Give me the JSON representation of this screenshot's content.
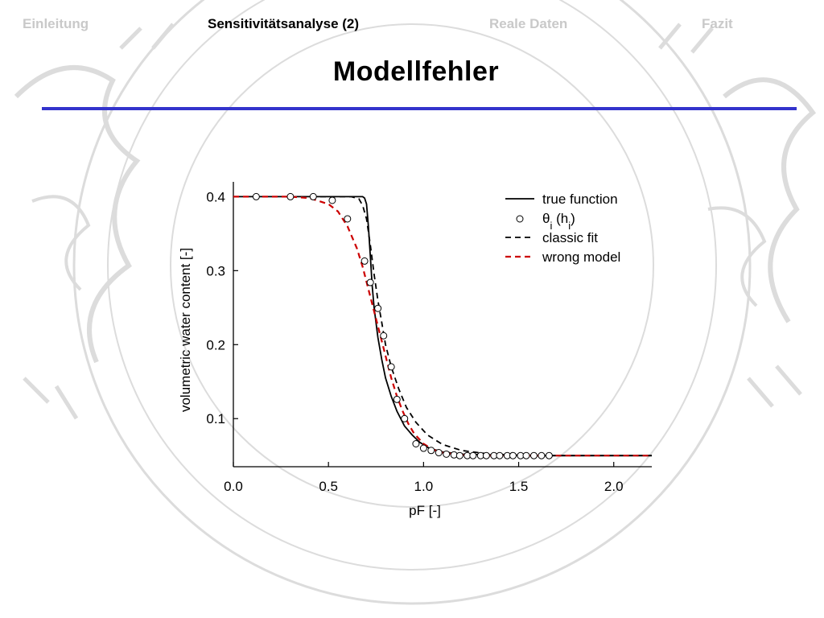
{
  "nav": {
    "items": [
      {
        "label": "Einleitung",
        "active": false
      },
      {
        "label": "Sensitivitätsanalyse (2)",
        "active": true
      },
      {
        "label": "Reale Daten",
        "active": false
      },
      {
        "label": "Fazit",
        "active": false
      }
    ]
  },
  "slide": {
    "title": "Modellfehler",
    "accent_color": "#3333cc",
    "seal_color": "#d8d8d8"
  },
  "chart_data": {
    "type": "line",
    "title": "",
    "xlabel": "pF [-]",
    "ylabel": "volumetric water content [-]",
    "xlim": [
      0.0,
      2.2
    ],
    "ylim": [
      0.035,
      0.42
    ],
    "xticks": [
      0.0,
      0.5,
      1.0,
      1.5,
      2.0
    ],
    "xtick_labels": [
      "0.0",
      "0.5",
      "1.0",
      "1.5",
      "2.0"
    ],
    "yticks": [
      0.1,
      0.2,
      0.3,
      0.4
    ],
    "ytick_labels": [
      "0.1",
      "0.2",
      "0.3",
      "0.4"
    ],
    "grid": false,
    "legend_position": "top-right",
    "legend": [
      {
        "key": "true",
        "label": "true function",
        "style": "solid",
        "color": "#000000"
      },
      {
        "key": "obs",
        "label": "θi (hi)",
        "main": "θ",
        "sub1": "i",
        "mid": " (h",
        "sub2": "i",
        "end": ")",
        "style": "marker",
        "color": "#000000"
      },
      {
        "key": "classic",
        "label": "classic fit",
        "style": "dashed",
        "color": "#000000"
      },
      {
        "key": "wrong",
        "label": "wrong model",
        "style": "dashed",
        "color": "#cc0000"
      }
    ],
    "series": [
      {
        "key": "true",
        "name": "true function",
        "style": "solid",
        "color": "#000000",
        "x": [
          0.0,
          0.66,
          0.68,
          0.69,
          0.7,
          0.71,
          0.72,
          0.73,
          0.74,
          0.76,
          0.78,
          0.8,
          0.83,
          0.86,
          0.9,
          0.94,
          0.98,
          1.03,
          1.1,
          1.2,
          1.35,
          1.6,
          2.2
        ],
        "y": [
          0.4,
          0.4,
          0.4,
          0.398,
          0.39,
          0.36,
          0.32,
          0.28,
          0.25,
          0.21,
          0.18,
          0.155,
          0.13,
          0.11,
          0.09,
          0.078,
          0.068,
          0.06,
          0.055,
          0.052,
          0.051,
          0.05,
          0.05
        ]
      },
      {
        "key": "classic",
        "name": "classic fit",
        "style": "dashed",
        "color": "#000000",
        "x": [
          0.0,
          0.62,
          0.66,
          0.68,
          0.7,
          0.72,
          0.74,
          0.76,
          0.78,
          0.8,
          0.83,
          0.87,
          0.91,
          0.96,
          1.02,
          1.1,
          1.2,
          1.35,
          1.55,
          2.2
        ],
        "y": [
          0.4,
          0.4,
          0.397,
          0.388,
          0.37,
          0.335,
          0.295,
          0.26,
          0.23,
          0.2,
          0.17,
          0.14,
          0.115,
          0.095,
          0.078,
          0.065,
          0.057,
          0.052,
          0.05,
          0.05
        ]
      },
      {
        "key": "wrong",
        "name": "wrong model",
        "style": "dashed",
        "color": "#cc0000",
        "x": [
          0.0,
          0.3,
          0.4,
          0.5,
          0.55,
          0.6,
          0.65,
          0.68,
          0.71,
          0.74,
          0.77,
          0.8,
          0.83,
          0.86,
          0.89,
          0.92,
          0.95,
          1.0,
          1.05,
          1.1,
          1.2,
          1.35,
          1.55,
          2.2
        ],
        "y": [
          0.4,
          0.4,
          0.398,
          0.39,
          0.38,
          0.36,
          0.33,
          0.305,
          0.275,
          0.245,
          0.215,
          0.185,
          0.155,
          0.13,
          0.11,
          0.093,
          0.08,
          0.066,
          0.058,
          0.054,
          0.051,
          0.05,
          0.05,
          0.05
        ]
      },
      {
        "key": "obs",
        "name": "θi (hi)",
        "style": "marker",
        "color": "#000000",
        "x": [
          0.12,
          0.3,
          0.42,
          0.52,
          0.6,
          0.69,
          0.72,
          0.76,
          0.79,
          0.83,
          0.86,
          0.9,
          0.96,
          1.0,
          1.04,
          1.08,
          1.12,
          1.16,
          1.19,
          1.23,
          1.26,
          1.3,
          1.33,
          1.37,
          1.4,
          1.44,
          1.47,
          1.51,
          1.54,
          1.58,
          1.62,
          1.66
        ],
        "y": [
          0.4,
          0.4,
          0.4,
          0.395,
          0.37,
          0.313,
          0.284,
          0.249,
          0.212,
          0.17,
          0.126,
          0.1,
          0.066,
          0.06,
          0.057,
          0.054,
          0.052,
          0.051,
          0.05,
          0.05,
          0.05,
          0.05,
          0.05,
          0.05,
          0.05,
          0.05,
          0.05,
          0.05,
          0.05,
          0.05,
          0.05,
          0.05
        ]
      }
    ]
  }
}
